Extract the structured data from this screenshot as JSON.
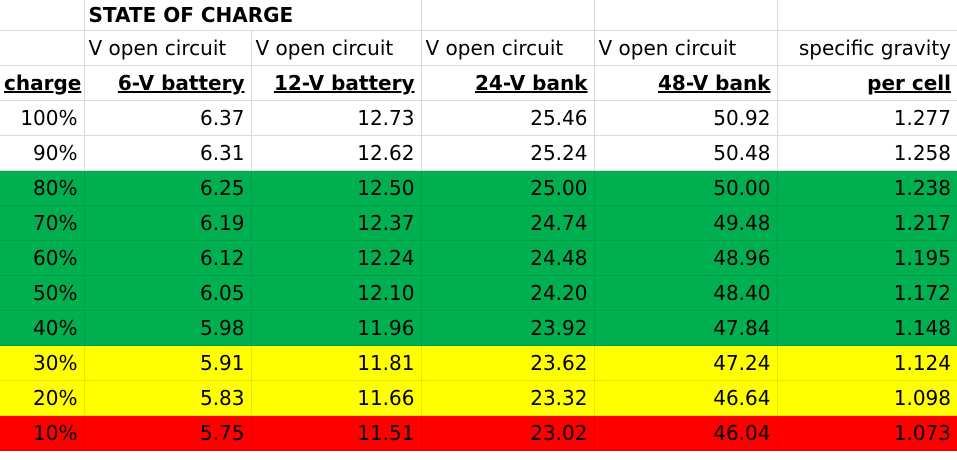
{
  "title": "STATE OF CHARGE",
  "subheaders": [
    "V open circuit",
    "V open circuit",
    "V open circuit",
    "V open circuit",
    "specific gravity"
  ],
  "headers": [
    "charge",
    "6-V battery",
    "12-V battery",
    "24-V bank",
    "48-V bank",
    "per cell"
  ],
  "bands": {
    "green": "#00b050",
    "yellow": "#ffff00",
    "red": "#ff0000"
  },
  "rows": [
    {
      "band": "none",
      "cells": [
        "100%",
        "6.37",
        "12.73",
        "25.46",
        "50.92",
        "1.277"
      ]
    },
    {
      "band": "none",
      "cells": [
        "90%",
        "6.31",
        "12.62",
        "25.24",
        "50.48",
        "1.258"
      ]
    },
    {
      "band": "green",
      "cells": [
        "80%",
        "6.25",
        "12.50",
        "25.00",
        "50.00",
        "1.238"
      ]
    },
    {
      "band": "green",
      "cells": [
        "70%",
        "6.19",
        "12.37",
        "24.74",
        "49.48",
        "1.217"
      ]
    },
    {
      "band": "green",
      "cells": [
        "60%",
        "6.12",
        "12.24",
        "24.48",
        "48.96",
        "1.195"
      ]
    },
    {
      "band": "green",
      "cells": [
        "50%",
        "6.05",
        "12.10",
        "24.20",
        "48.40",
        "1.172"
      ]
    },
    {
      "band": "green",
      "cells": [
        "40%",
        "5.98",
        "11.96",
        "23.92",
        "47.84",
        "1.148"
      ]
    },
    {
      "band": "yellow",
      "cells": [
        "30%",
        "5.91",
        "11.81",
        "23.62",
        "47.24",
        "1.124"
      ]
    },
    {
      "band": "yellow",
      "cells": [
        "20%",
        "5.83",
        "11.66",
        "23.32",
        "46.64",
        "1.098"
      ]
    },
    {
      "band": "red",
      "cells": [
        "10%",
        "5.75",
        "11.51",
        "23.02",
        "46.04",
        "1.073"
      ]
    }
  ]
}
